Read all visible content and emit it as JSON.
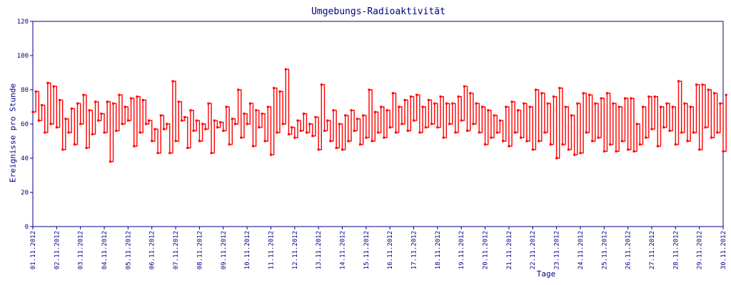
{
  "chart_data": {
    "type": "line",
    "title": "Umgebungs-Radioaktivität",
    "xlabel": "Tage",
    "ylabel": "Ereignisse pro Stunde",
    "ylim": [
      0,
      120
    ],
    "yticks": [
      0,
      20,
      40,
      60,
      80,
      100,
      120
    ],
    "xticks": [
      "01.11.2012",
      "02.11.2012",
      "03.11.2012",
      "04.11.2012",
      "05.11.2012",
      "06.11.2012",
      "07.11.2012",
      "08.11.2012",
      "09.11.2012",
      "10.11.2012",
      "11.11.2012",
      "12.11.2012",
      "13.11.2012",
      "14.11.2012",
      "15.11.2012",
      "16.11.2012",
      "17.11.2012",
      "18.11.2012",
      "19.11.2012",
      "20.11.2012",
      "21.11.2012",
      "22.11.2012",
      "23.11.2012",
      "24.11.2012",
      "25.11.2012",
      "26.11.2012",
      "27.11.2012",
      "28.11.2012",
      "29.11.2012",
      "30.11.2012"
    ],
    "x_unit": "days since 01.11.2012, 8 samples per day",
    "samples_per_day": 8,
    "series": [
      {
        "name": "Ereignisse pro Stunde",
        "color": "#ff0000",
        "values": [
          67,
          79,
          62,
          71,
          55,
          84,
          60,
          82,
          58,
          74,
          45,
          63,
          55,
          69,
          48,
          72,
          60,
          77,
          46,
          68,
          54,
          73,
          62,
          66,
          55,
          73,
          38,
          72,
          56,
          77,
          60,
          70,
          62,
          75,
          47,
          76,
          55,
          74,
          60,
          62,
          50,
          57,
          43,
          65,
          57,
          60,
          43,
          85,
          50,
          73,
          62,
          64,
          46,
          68,
          56,
          62,
          50,
          60,
          57,
          72,
          43,
          62,
          58,
          61,
          56,
          70,
          48,
          63,
          60,
          80,
          52,
          66,
          60,
          72,
          47,
          68,
          58,
          66,
          50,
          70,
          42,
          81,
          55,
          79,
          60,
          92,
          54,
          58,
          52,
          62,
          56,
          66,
          55,
          60,
          53,
          64,
          45,
          83,
          56,
          62,
          50,
          68,
          46,
          60,
          45,
          65,
          50,
          68,
          56,
          63,
          48,
          65,
          52,
          80,
          50,
          67,
          55,
          70,
          52,
          68,
          58,
          78,
          55,
          70,
          60,
          74,
          56,
          76,
          62,
          77,
          55,
          70,
          58,
          74,
          60,
          72,
          58,
          76,
          52,
          72,
          60,
          72,
          55,
          76,
          62,
          82,
          56,
          78,
          60,
          72,
          55,
          70,
          48,
          68,
          52,
          65,
          55,
          62,
          50,
          70,
          47,
          73,
          55,
          68,
          52,
          72,
          50,
          70,
          45,
          80,
          50,
          78,
          55,
          72,
          48,
          76,
          40,
          81,
          48,
          70,
          45,
          65,
          42,
          72,
          43,
          78,
          55,
          77,
          50,
          72,
          52,
          75,
          44,
          78,
          48,
          72,
          44,
          70,
          50,
          75,
          45,
          75,
          44,
          60,
          48,
          70,
          52,
          76,
          57,
          76,
          47,
          70,
          58,
          72,
          56,
          70,
          48,
          85,
          55,
          72,
          50,
          70,
          55,
          83,
          45,
          83,
          58,
          80,
          52,
          78,
          55,
          72,
          44,
          77
        ]
      }
    ]
  }
}
